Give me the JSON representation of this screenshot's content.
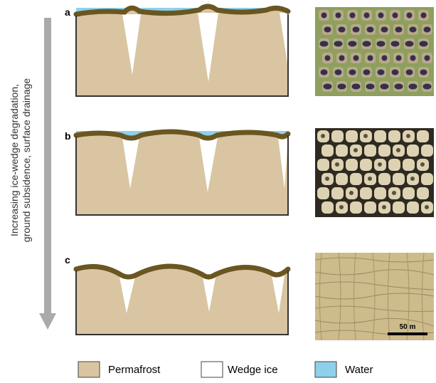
{
  "arrow_label": [
    "Increasing ice-wedge degradation,",
    "ground subsidence, surface drainage"
  ],
  "panels": [
    {
      "label": "a"
    },
    {
      "label": "b"
    },
    {
      "label": "c"
    }
  ],
  "scale_bar": "50 m",
  "legend": [
    {
      "label": "Permafrost"
    },
    {
      "label": "Wedge ice"
    },
    {
      "label": "Water"
    }
  ]
}
